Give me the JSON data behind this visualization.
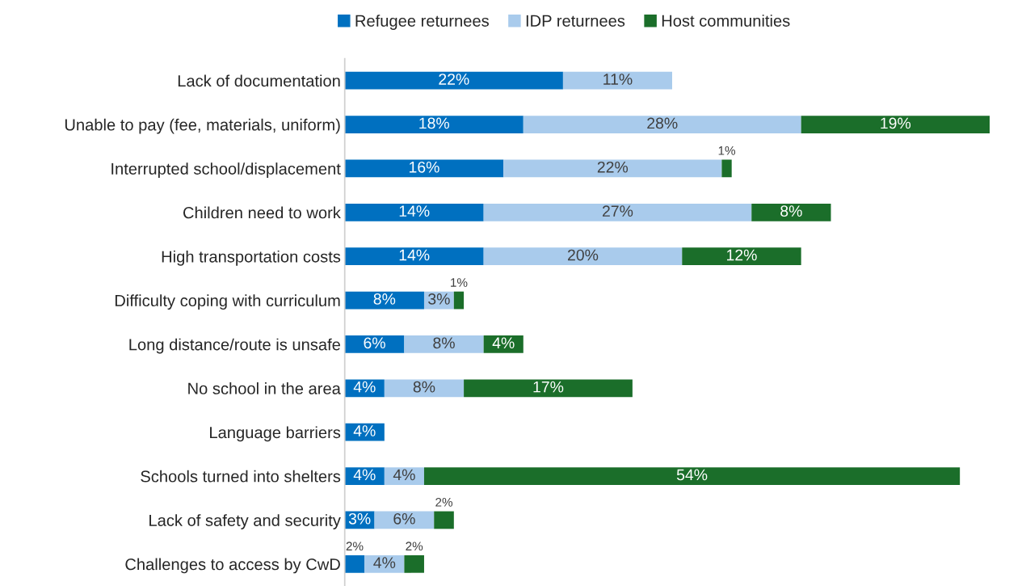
{
  "chart_data": {
    "type": "bar",
    "orientation": "horizontal",
    "stacked": true,
    "legend": "top",
    "tick_labels": "y",
    "grid": false,
    "categories": [
      "Lack of documentation",
      "Unable to pay (fee, materials, uniform)",
      "Interrupted school/displacement",
      "Children need to work",
      "High transportation costs",
      "Difficulty coping with curriculum",
      "Long distance/route is unsafe",
      "No school in the area",
      "Language barriers",
      "Schools turned into shelters",
      "Lack of safety and security",
      "Challenges to access by CwD"
    ],
    "series": [
      {
        "name": "Refugee returnees",
        "color": "#0070c0",
        "values": [
          22,
          18,
          16,
          14,
          14,
          8,
          6,
          4,
          4,
          4,
          3,
          2
        ],
        "value_labels": [
          "22%",
          "18%",
          "16%",
          "14%",
          "14%",
          "8%",
          "6%",
          "4%",
          "4%",
          "4%",
          "3%",
          "2%"
        ]
      },
      {
        "name": "IDP returnees",
        "color": "#a9cbec",
        "values": [
          11,
          28,
          22,
          27,
          20,
          3,
          8,
          8,
          null,
          4,
          6,
          4
        ],
        "value_labels": [
          "11%",
          "28%",
          "22%",
          "27%",
          "20%",
          "3%",
          "8%",
          "8%",
          null,
          "4%",
          "6%",
          "4%"
        ]
      },
      {
        "name": "Host communities",
        "color": "#1b6e2a",
        "values": [
          null,
          19,
          1,
          8,
          12,
          1,
          4,
          17,
          null,
          54,
          2,
          2
        ],
        "value_labels": [
          null,
          "19%",
          "1%",
          "8%",
          "12%",
          "1%",
          "4%",
          "17%",
          null,
          "54%",
          "2%",
          "2%"
        ]
      }
    ]
  }
}
